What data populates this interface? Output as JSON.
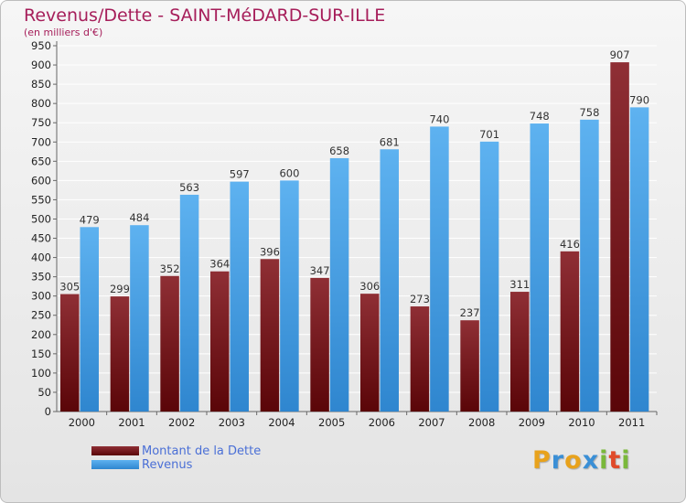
{
  "chart_data": {
    "type": "bar",
    "title": "Revenus/Dette - SAINT-MéDARD-SUR-ILLE",
    "subtitle": "(en milliers d'€)",
    "categories": [
      "2000",
      "2001",
      "2002",
      "2003",
      "2004",
      "2005",
      "2006",
      "2007",
      "2008",
      "2009",
      "2010",
      "2011"
    ],
    "series": [
      {
        "name": "Montant de la Dette",
        "color": "#7b1e24",
        "values": [
          305,
          299,
          352,
          364,
          396,
          347,
          306,
          273,
          237,
          311,
          416,
          907
        ]
      },
      {
        "name": "Revenus",
        "color": "#4fa3e6",
        "values": [
          479,
          484,
          563,
          597,
          600,
          658,
          681,
          740,
          701,
          748,
          758,
          790
        ]
      }
    ],
    "ylim": [
      0,
      950
    ],
    "ytick_step": 50,
    "xlabel": "",
    "ylabel": "",
    "grid": true,
    "legend": "bottom-left"
  },
  "legend": {
    "debt_label": "Montant de la Dette",
    "revenue_label": "Revenus"
  },
  "logo": {
    "letters": [
      "P",
      "r",
      "o",
      "x",
      "i",
      "t",
      "i"
    ],
    "colors": [
      "#e8a21c",
      "#3a8fd6",
      "#e8a21c",
      "#3a8fd6",
      "#7ab83a",
      "#e04a2a",
      "#7ab83a"
    ]
  }
}
